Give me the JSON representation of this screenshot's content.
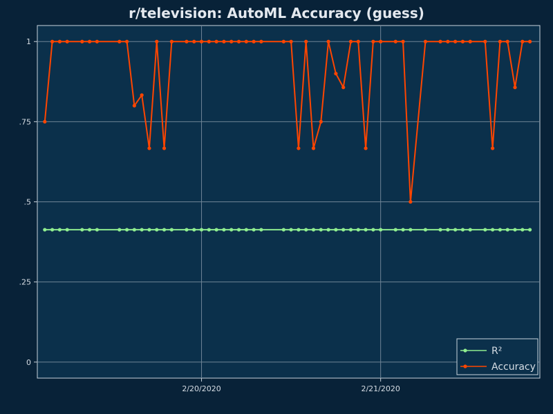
{
  "chart_data": {
    "type": "line",
    "title": "r/television: AutoML Accuracy (guess)",
    "xlabel": "",
    "ylabel": "",
    "ylim": [
      -0.05,
      1.05
    ],
    "y_ticks": [
      {
        "value": 0,
        "label": "0"
      },
      {
        "value": 0.25,
        "label": ".25"
      },
      {
        "value": 0.5,
        "label": ".5"
      },
      {
        "value": 0.75,
        "label": ".75"
      },
      {
        "value": 1,
        "label": "1"
      }
    ],
    "x_ticks": [
      {
        "value": "2020-02-20",
        "label": "2/20/2020"
      },
      {
        "value": "2020-02-21",
        "label": "2/21/2020"
      }
    ],
    "x": [
      "2020-02-19 03:00",
      "2020-02-19 04:00",
      "2020-02-19 05:00",
      "2020-02-19 06:00",
      "2020-02-19 08:00",
      "2020-02-19 09:00",
      "2020-02-19 10:00",
      "2020-02-19 13:00",
      "2020-02-19 14:00",
      "2020-02-19 15:00",
      "2020-02-19 16:00",
      "2020-02-19 17:00",
      "2020-02-19 18:00",
      "2020-02-19 19:00",
      "2020-02-19 20:00",
      "2020-02-19 22:00",
      "2020-02-19 23:00",
      "2020-02-20 00:00",
      "2020-02-20 01:00",
      "2020-02-20 02:00",
      "2020-02-20 03:00",
      "2020-02-20 04:00",
      "2020-02-20 05:00",
      "2020-02-20 06:00",
      "2020-02-20 07:00",
      "2020-02-20 08:00",
      "2020-02-20 11:00",
      "2020-02-20 12:00",
      "2020-02-20 13:00",
      "2020-02-20 14:00",
      "2020-02-20 15:00",
      "2020-02-20 16:00",
      "2020-02-20 17:00",
      "2020-02-20 18:00",
      "2020-02-20 19:00",
      "2020-02-20 20:00",
      "2020-02-20 21:00",
      "2020-02-20 22:00",
      "2020-02-20 23:00",
      "2020-02-21 00:00",
      "2020-02-21 02:00",
      "2020-02-21 03:00",
      "2020-02-21 04:00",
      "2020-02-21 06:00",
      "2020-02-21 08:00",
      "2020-02-21 09:00",
      "2020-02-21 10:00",
      "2020-02-21 11:00",
      "2020-02-21 12:00",
      "2020-02-21 14:00",
      "2020-02-21 15:00",
      "2020-02-21 16:00",
      "2020-02-21 17:00",
      "2020-02-21 18:00",
      "2020-02-21 19:00",
      "2020-02-21 20:00"
    ],
    "series": [
      {
        "name": "R²",
        "color": "#90ee90",
        "values": [
          0.413,
          0.413,
          0.413,
          0.413,
          0.413,
          0.413,
          0.413,
          0.413,
          0.413,
          0.413,
          0.413,
          0.413,
          0.413,
          0.413,
          0.413,
          0.413,
          0.413,
          0.413,
          0.413,
          0.413,
          0.413,
          0.413,
          0.413,
          0.413,
          0.413,
          0.413,
          0.413,
          0.413,
          0.413,
          0.413,
          0.413,
          0.413,
          0.413,
          0.413,
          0.413,
          0.413,
          0.413,
          0.413,
          0.413,
          0.413,
          0.413,
          0.413,
          0.413,
          0.413,
          0.413,
          0.413,
          0.413,
          0.413,
          0.413,
          0.413,
          0.413,
          0.413,
          0.413,
          0.413,
          0.413,
          0.413
        ]
      },
      {
        "name": "Accuracy",
        "color": "#ff4500",
        "values": [
          0.75,
          1,
          1,
          1,
          1,
          1,
          1,
          1,
          1,
          0.8,
          0.833,
          0.667,
          1,
          0.667,
          1,
          1,
          1,
          1,
          1,
          1,
          1,
          1,
          1,
          1,
          1,
          1,
          1,
          1,
          0.667,
          1,
          0.667,
          0.75,
          1,
          0.9,
          0.857,
          1,
          1,
          0.667,
          1,
          1,
          1,
          1,
          0.5,
          1,
          1,
          1,
          1,
          1,
          1,
          1,
          0.667,
          1,
          1,
          0.857,
          1,
          1
        ]
      }
    ],
    "legend_position": "bottom-right",
    "grid": true
  }
}
